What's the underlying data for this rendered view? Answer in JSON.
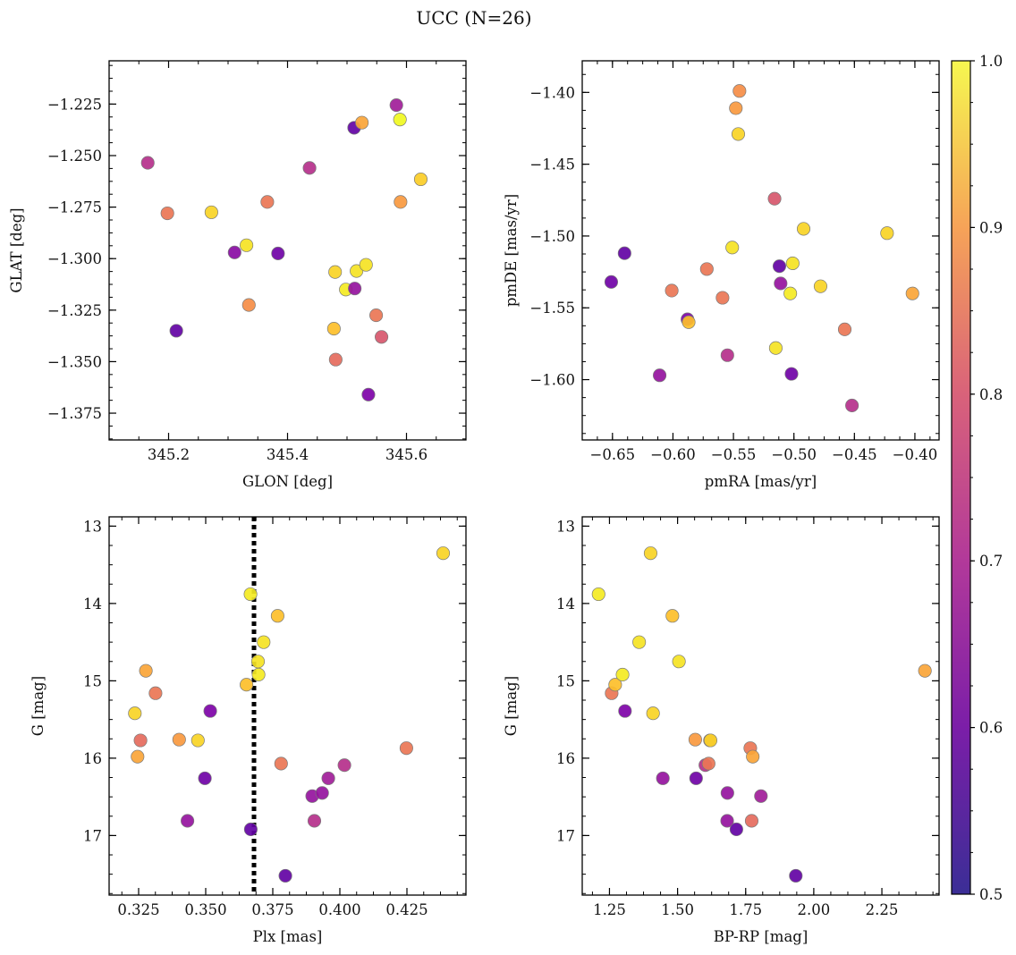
{
  "figure": {
    "suptitle": "UCC (N=26)"
  },
  "colors": {
    "cmap": "plasma",
    "threshold_line": "#000000"
  },
  "chart_data": [
    {
      "type": "scatter",
      "xlabel": "GLON [deg]",
      "ylabel": "GLAT [deg]",
      "xlim": [
        345.1,
        345.7
      ],
      "ylim": [
        -1.388,
        -1.204
      ],
      "xticks": [
        345.2,
        345.4,
        345.6
      ],
      "xticklabels": [
        "345.2",
        "345.4",
        "345.6"
      ],
      "yticks": [
        -1.225,
        -1.25,
        -1.275,
        -1.3,
        -1.325,
        -1.35,
        -1.375
      ],
      "yticklabels": [
        "−1.225",
        "−1.250",
        "−1.275",
        "−1.300",
        "−1.325",
        "−1.350",
        "−1.375"
      ],
      "points": [
        {
          "x": 345.165,
          "y": -1.2535,
          "c": 0.66
        },
        {
          "x": 345.198,
          "y": -1.278,
          "c": 0.8
        },
        {
          "x": 345.213,
          "y": -1.335,
          "c": 0.52
        },
        {
          "x": 345.272,
          "y": -1.2775,
          "c": 0.95
        },
        {
          "x": 345.311,
          "y": -1.297,
          "c": 0.58
        },
        {
          "x": 345.331,
          "y": -1.2935,
          "c": 0.97
        },
        {
          "x": 345.335,
          "y": -1.3225,
          "c": 0.84
        },
        {
          "x": 345.366,
          "y": -1.2725,
          "c": 0.8
        },
        {
          "x": 345.384,
          "y": -1.2975,
          "c": 0.54
        },
        {
          "x": 345.437,
          "y": -1.256,
          "c": 0.66
        },
        {
          "x": 345.478,
          "y": -1.334,
          "c": 0.92
        },
        {
          "x": 345.48,
          "y": -1.3065,
          "c": 0.95
        },
        {
          "x": 345.481,
          "y": -1.349,
          "c": 0.78
        },
        {
          "x": 345.498,
          "y": -1.315,
          "c": 0.98
        },
        {
          "x": 345.512,
          "y": -1.2365,
          "c": 0.52
        },
        {
          "x": 345.513,
          "y": -1.3145,
          "c": 0.6
        },
        {
          "x": 345.516,
          "y": -1.306,
          "c": 0.97
        },
        {
          "x": 345.525,
          "y": -1.234,
          "c": 0.88
        },
        {
          "x": 345.532,
          "y": -1.303,
          "c": 0.97
        },
        {
          "x": 345.536,
          "y": -1.366,
          "c": 0.56
        },
        {
          "x": 345.549,
          "y": -1.3275,
          "c": 0.8
        },
        {
          "x": 345.558,
          "y": -1.338,
          "c": 0.74
        },
        {
          "x": 345.583,
          "y": -1.2255,
          "c": 0.62
        },
        {
          "x": 345.589,
          "y": -1.2325,
          "c": 1.0
        },
        {
          "x": 345.59,
          "y": -1.2725,
          "c": 0.86
        },
        {
          "x": 345.624,
          "y": -1.2615,
          "c": 0.94
        }
      ]
    },
    {
      "type": "scatter",
      "xlabel": "pmRA [mas/yr]",
      "ylabel": "pmDE [mas/yr]",
      "xlim": [
        -0.675,
        -0.38
      ],
      "ylim": [
        -1.642,
        -1.378
      ],
      "xticks": [
        -0.65,
        -0.6,
        -0.55,
        -0.5,
        -0.45,
        -0.4
      ],
      "xticklabels": [
        "−0.65",
        "−0.60",
        "−0.55",
        "−0.50",
        "−0.45",
        "−0.40"
      ],
      "yticks": [
        -1.4,
        -1.45,
        -1.5,
        -1.55,
        -1.6
      ],
      "yticklabels": [
        "−1.40",
        "−1.45",
        "−1.50",
        "−1.55",
        "−1.60"
      ],
      "points": [
        {
          "x": -0.651,
          "y": -1.532,
          "c": 0.54
        },
        {
          "x": -0.64,
          "y": -1.512,
          "c": 0.52
        },
        {
          "x": -0.611,
          "y": -1.597,
          "c": 0.6
        },
        {
          "x": -0.601,
          "y": -1.538,
          "c": 0.8
        },
        {
          "x": -0.588,
          "y": -1.558,
          "c": 0.56
        },
        {
          "x": -0.587,
          "y": -1.56,
          "c": 0.92
        },
        {
          "x": -0.572,
          "y": -1.523,
          "c": 0.8
        },
        {
          "x": -0.559,
          "y": -1.543,
          "c": 0.8
        },
        {
          "x": -0.555,
          "y": -1.583,
          "c": 0.66
        },
        {
          "x": -0.551,
          "y": -1.508,
          "c": 0.97
        },
        {
          "x": -0.548,
          "y": -1.411,
          "c": 0.86
        },
        {
          "x": -0.546,
          "y": -1.429,
          "c": 0.95
        },
        {
          "x": -0.545,
          "y": -1.399,
          "c": 0.84
        },
        {
          "x": -0.516,
          "y": -1.474,
          "c": 0.74
        },
        {
          "x": -0.515,
          "y": -1.578,
          "c": 0.97
        },
        {
          "x": -0.512,
          "y": -1.521,
          "c": 0.52
        },
        {
          "x": -0.511,
          "y": -1.533,
          "c": 0.6
        },
        {
          "x": -0.503,
          "y": -1.54,
          "c": 0.98
        },
        {
          "x": -0.502,
          "y": -1.596,
          "c": 0.54
        },
        {
          "x": -0.501,
          "y": -1.519,
          "c": 0.97
        },
        {
          "x": -0.492,
          "y": -1.495,
          "c": 0.95
        },
        {
          "x": -0.478,
          "y": -1.535,
          "c": 0.95
        },
        {
          "x": -0.458,
          "y": -1.565,
          "c": 0.8
        },
        {
          "x": -0.452,
          "y": -1.618,
          "c": 0.66
        },
        {
          "x": -0.423,
          "y": -1.498,
          "c": 0.95
        },
        {
          "x": -0.402,
          "y": -1.54,
          "c": 0.88
        }
      ]
    },
    {
      "type": "scatter",
      "xlabel": "Plx [mas]",
      "ylabel": "G [mag]",
      "xlim": [
        0.314,
        0.447
      ],
      "ylim": [
        17.77,
        12.88
      ],
      "y_inverted": true,
      "xticks": [
        0.325,
        0.35,
        0.375,
        0.4,
        0.425
      ],
      "xticklabels": [
        "0.325",
        "0.350",
        "0.375",
        "0.400",
        "0.425"
      ],
      "yticks": [
        13,
        14,
        15,
        16,
        17
      ],
      "yticklabels": [
        "13",
        "14",
        "15",
        "16",
        "17"
      ],
      "vline": {
        "x": 0.368,
        "style": "dotted"
      },
      "points": [
        {
          "x": 0.3236,
          "y": 15.42,
          "c": 0.95
        },
        {
          "x": 0.3246,
          "y": 15.98,
          "c": 0.88
        },
        {
          "x": 0.3257,
          "y": 15.77,
          "c": 0.78
        },
        {
          "x": 0.3277,
          "y": 14.87,
          "c": 0.88
        },
        {
          "x": 0.3313,
          "y": 15.16,
          "c": 0.8
        },
        {
          "x": 0.3401,
          "y": 15.76,
          "c": 0.86
        },
        {
          "x": 0.3432,
          "y": 16.81,
          "c": 0.6
        },
        {
          "x": 0.3471,
          "y": 15.77,
          "c": 0.95
        },
        {
          "x": 0.3497,
          "y": 16.26,
          "c": 0.54
        },
        {
          "x": 0.3517,
          "y": 15.39,
          "c": 0.56
        },
        {
          "x": 0.3652,
          "y": 15.05,
          "c": 0.92
        },
        {
          "x": 0.3668,
          "y": 16.92,
          "c": 0.52
        },
        {
          "x": 0.3667,
          "y": 13.88,
          "c": 0.98
        },
        {
          "x": 0.3695,
          "y": 14.75,
          "c": 0.97
        },
        {
          "x": 0.3697,
          "y": 14.92,
          "c": 0.98
        },
        {
          "x": 0.3716,
          "y": 14.5,
          "c": 0.97
        },
        {
          "x": 0.3768,
          "y": 14.16,
          "c": 0.92
        },
        {
          "x": 0.3781,
          "y": 16.07,
          "c": 0.8
        },
        {
          "x": 0.3797,
          "y": 17.52,
          "c": 0.52
        },
        {
          "x": 0.3897,
          "y": 16.49,
          "c": 0.6
        },
        {
          "x": 0.3905,
          "y": 16.81,
          "c": 0.66
        },
        {
          "x": 0.3934,
          "y": 16.45,
          "c": 0.6
        },
        {
          "x": 0.3957,
          "y": 16.26,
          "c": 0.62
        },
        {
          "x": 0.4017,
          "y": 16.09,
          "c": 0.66
        },
        {
          "x": 0.4248,
          "y": 15.87,
          "c": 0.8
        },
        {
          "x": 0.4385,
          "y": 13.35,
          "c": 0.95
        }
      ]
    },
    {
      "type": "scatter",
      "xlabel": "BP-RP [mag]",
      "ylabel": "G [mag]",
      "xlim": [
        1.15,
        2.46
      ],
      "ylim": [
        17.77,
        12.88
      ],
      "y_inverted": true,
      "xticks": [
        1.25,
        1.5,
        1.75,
        2.0,
        2.25
      ],
      "xticklabels": [
        "1.25",
        "1.50",
        "1.75",
        "2.00",
        "2.25"
      ],
      "yticks": [
        13,
        14,
        15,
        16,
        17
      ],
      "yticklabels": [
        "13",
        "14",
        "15",
        "16",
        "17"
      ],
      "points": [
        {
          "x": 1.21,
          "y": 13.88,
          "c": 0.98
        },
        {
          "x": 1.258,
          "y": 15.16,
          "c": 0.8
        },
        {
          "x": 1.271,
          "y": 15.05,
          "c": 0.92
        },
        {
          "x": 1.298,
          "y": 14.92,
          "c": 0.98
        },
        {
          "x": 1.307,
          "y": 15.39,
          "c": 0.56
        },
        {
          "x": 1.359,
          "y": 14.5,
          "c": 0.97
        },
        {
          "x": 1.401,
          "y": 13.35,
          "c": 0.95
        },
        {
          "x": 1.41,
          "y": 15.42,
          "c": 0.95
        },
        {
          "x": 1.446,
          "y": 16.26,
          "c": 0.6
        },
        {
          "x": 1.481,
          "y": 14.16,
          "c": 0.92
        },
        {
          "x": 1.505,
          "y": 14.75,
          "c": 0.97
        },
        {
          "x": 1.565,
          "y": 15.76,
          "c": 0.86
        },
        {
          "x": 1.568,
          "y": 16.26,
          "c": 0.54
        },
        {
          "x": 1.602,
          "y": 16.09,
          "c": 0.66
        },
        {
          "x": 1.614,
          "y": 16.07,
          "c": 0.8
        },
        {
          "x": 1.619,
          "y": 15.77,
          "c": 0.78
        },
        {
          "x": 1.621,
          "y": 15.77,
          "c": 0.95
        },
        {
          "x": 1.682,
          "y": 16.81,
          "c": 0.6
        },
        {
          "x": 1.683,
          "y": 16.45,
          "c": 0.6
        },
        {
          "x": 1.716,
          "y": 16.92,
          "c": 0.52
        },
        {
          "x": 1.767,
          "y": 15.87,
          "c": 0.8
        },
        {
          "x": 1.772,
          "y": 16.81,
          "c": 0.78
        },
        {
          "x": 1.776,
          "y": 15.98,
          "c": 0.88
        },
        {
          "x": 1.806,
          "y": 16.49,
          "c": 0.62
        },
        {
          "x": 1.934,
          "y": 17.52,
          "c": 0.52
        },
        {
          "x": 2.408,
          "y": 14.87,
          "c": 0.88
        }
      ]
    }
  ],
  "colorbar": {
    "vmin": 0.5,
    "vmax": 1.0,
    "ticks": [
      0.5,
      0.6,
      0.7,
      0.8,
      0.9,
      1.0
    ],
    "ticklabels": [
      "0.5",
      "0.6",
      "0.7",
      "0.8",
      "0.9",
      "1.0"
    ]
  }
}
